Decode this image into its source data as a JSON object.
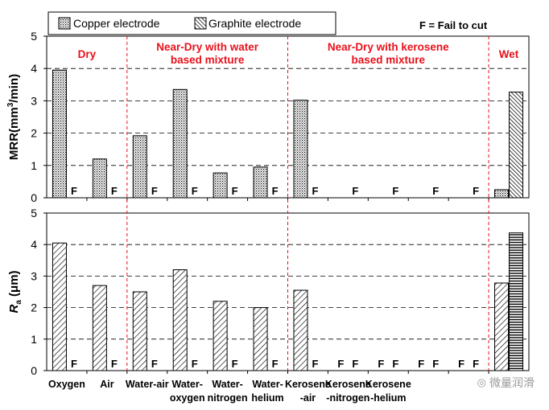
{
  "legend": {
    "copper_label": "Copper electrode",
    "graphite_label": "Graphite electrode",
    "fail_note": "F = Fail to cut"
  },
  "watermark": "微量润滑",
  "colors": {
    "region_label": "#e8111b",
    "divider": "#e8111b",
    "ink": "#000000"
  },
  "chart_data": [
    {
      "type": "bar",
      "panel": "top",
      "ylabel_main": "MRR(mm",
      "ylabel_sup": "3",
      "ylabel_tail": "/min)",
      "ylim": [
        0,
        5
      ],
      "yticks": [
        0,
        1,
        2,
        3,
        4,
        5
      ],
      "grid": "dashed-horizontal",
      "categories": [
        "Oxygen",
        "Air",
        "Water-air",
        "Water-oxygen",
        "Water-nitrogen",
        "Water-helium",
        "Kerosene-air",
        "Kerosene-nitrogen",
        "Kerosene-helium",
        "",
        "",
        "Wet"
      ],
      "series": [
        {
          "name": "Copper electrode",
          "pattern": "dots",
          "values": [
            3.95,
            1.2,
            1.92,
            3.35,
            0.77,
            0.95,
            3.02,
            null,
            null,
            null,
            null,
            0.25
          ],
          "fail": [
            false,
            false,
            false,
            false,
            false,
            false,
            false,
            false,
            false,
            false,
            false,
            false
          ]
        },
        {
          "name": "Graphite electrode",
          "pattern": "diagonal",
          "values": [
            null,
            null,
            null,
            null,
            null,
            null,
            null,
            null,
            null,
            null,
            null,
            3.27
          ],
          "fail": [
            true,
            true,
            true,
            true,
            true,
            true,
            true,
            true,
            true,
            true,
            true,
            false
          ]
        }
      ],
      "regions": [
        {
          "label_lines": [
            "Dry"
          ]
        },
        {
          "label_lines": [
            "Near-Dry with water",
            "based mixture"
          ]
        },
        {
          "label_lines": [
            "Near-Dry with kerosene",
            "based mixture"
          ]
        },
        {
          "label_lines": [
            "Wet"
          ]
        }
      ]
    },
    {
      "type": "bar",
      "panel": "bottom",
      "ylabel_main": "R",
      "ylabel_sub": "a",
      "ylabel_tail": " (μm)",
      "ylim": [
        0,
        5
      ],
      "yticks": [
        0,
        1,
        2,
        3,
        4,
        5
      ],
      "grid": "dashed-horizontal",
      "series": [
        {
          "name": "Copper electrode",
          "pattern": "diagonal",
          "values": [
            4.05,
            2.7,
            2.5,
            3.2,
            2.2,
            2.0,
            2.55,
            null,
            null,
            null,
            null,
            2.78
          ],
          "fail": [
            false,
            false,
            false,
            false,
            false,
            false,
            false,
            true,
            true,
            true,
            true,
            false
          ]
        },
        {
          "name": "Graphite electrode",
          "pattern": "horizontal",
          "values": [
            null,
            null,
            null,
            null,
            null,
            null,
            null,
            null,
            null,
            null,
            null,
            4.37
          ],
          "fail": [
            true,
            true,
            true,
            true,
            true,
            true,
            true,
            true,
            true,
            true,
            true,
            false
          ]
        }
      ]
    }
  ],
  "x_tick_labels": [
    [
      "Oxygen"
    ],
    [
      "Air"
    ],
    [
      "Water-air"
    ],
    [
      "Water-",
      "oxygen"
    ],
    [
      "Water-",
      "nitrogen"
    ],
    [
      "Water-",
      "helium"
    ],
    [
      "Kerosene",
      "-air"
    ],
    [
      "Kerosene",
      "-nitrogen"
    ],
    [
      "Kerosene",
      "-helium"
    ]
  ]
}
